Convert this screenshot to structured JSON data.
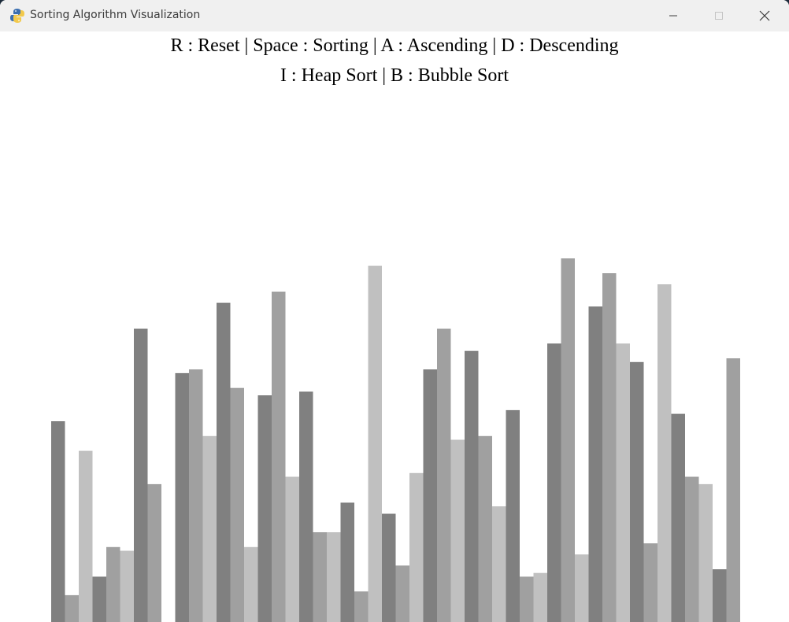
{
  "window": {
    "title": "Sorting Algorithm Visualization",
    "controls": {
      "minimize_icon": "minimize-icon",
      "maximize_icon": "maximize-icon",
      "close_icon": "close-icon"
    }
  },
  "instructions": {
    "line1": "R : Reset | Space : Sorting | A : Ascending | D : Descending",
    "line2": "I : Heap Sort | B : Bubble Sort"
  },
  "colors": {
    "bar_shades": [
      "#808080",
      "#a0a0a0",
      "#c0c0c0"
    ],
    "background": "#ffffff"
  },
  "chart_data": {
    "type": "bar",
    "title": "",
    "xlabel": "",
    "ylabel": "",
    "ylim": [
      0,
      100
    ],
    "values": [
      50,
      3,
      42,
      8,
      16,
      15,
      75,
      33,
      0,
      63,
      64,
      46,
      82,
      59,
      16,
      57,
      85,
      35,
      58,
      20,
      20,
      28,
      4,
      92,
      25,
      11,
      36,
      64,
      75,
      45,
      69,
      46,
      27,
      53,
      8,
      9,
      71,
      94,
      14,
      81,
      90,
      71,
      66,
      17,
      87,
      52,
      35,
      33,
      10,
      67
    ],
    "shade_index": [
      0,
      1,
      2,
      0,
      1,
      2,
      0,
      1,
      2,
      0,
      1,
      2,
      0,
      1,
      2,
      0,
      1,
      2,
      0,
      1,
      2,
      0,
      1,
      2,
      0,
      1,
      2,
      0,
      1,
      2,
      0,
      1,
      2,
      0,
      1,
      2,
      0,
      1,
      2,
      0,
      1,
      2,
      0,
      1,
      2,
      0,
      1,
      2,
      0,
      1
    ]
  }
}
